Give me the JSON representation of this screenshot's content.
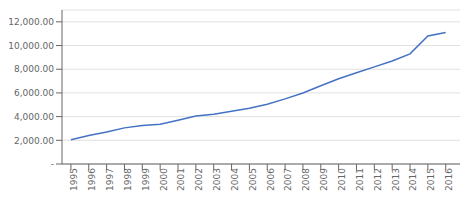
{
  "chart_data": {
    "type": "line",
    "x": [
      1995,
      1996,
      1997,
      1998,
      1999,
      2000,
      2001,
      2002,
      2003,
      2004,
      2005,
      2006,
      2007,
      2008,
      2009,
      2010,
      2011,
      2012,
      2013,
      2014,
      2015,
      2016
    ],
    "values": [
      2050,
      2400,
      2700,
      3050,
      3250,
      3350,
      3700,
      4050,
      4200,
      4450,
      4700,
      5050,
      5500,
      6000,
      6600,
      7200,
      7700,
      8200,
      8700,
      9300,
      10800,
      11100
    ],
    "color": "#4472C4",
    "xlim": [
      1994.5,
      2016.8
    ],
    "xticks": [
      1995,
      1996,
      1997,
      1998,
      1999,
      2000,
      2001,
      2002,
      2003,
      2004,
      2005,
      2006,
      2007,
      2008,
      2009,
      2010,
      2011,
      2012,
      2013,
      2014,
      2015,
      2016
    ],
    "ylim": [
      0,
      13000
    ],
    "yticks": [
      {
        "value": 0,
        "label": "-"
      },
      {
        "value": 2000,
        "label": "2,000.00"
      },
      {
        "value": 4000,
        "label": "4,000.00"
      },
      {
        "value": 6000,
        "label": "6,000.00"
      },
      {
        "value": 8000,
        "label": "8,000.00"
      },
      {
        "value": 10000,
        "label": "10,000.00"
      },
      {
        "value": 12000,
        "label": "12,000.00"
      }
    ],
    "grid": "y"
  }
}
